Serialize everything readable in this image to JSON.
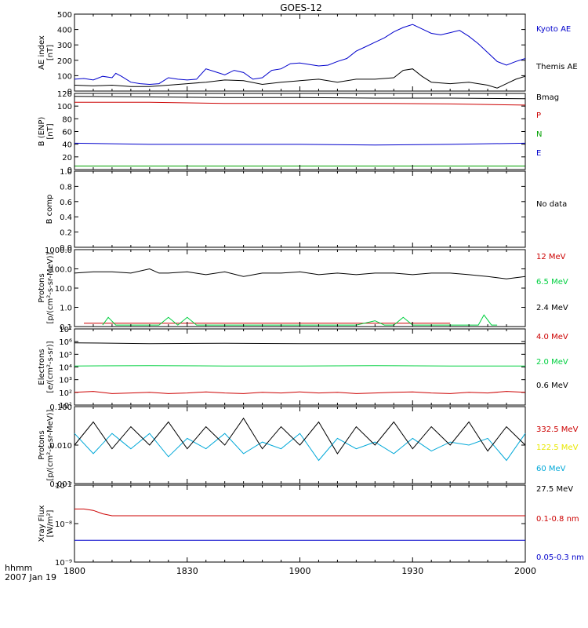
{
  "title": "GOES-12",
  "footer": {
    "time_label": "hhmm",
    "date_label": "2007 Jan 19"
  },
  "time_axis": {
    "ticks": [
      "1800",
      "1830",
      "1900",
      "1930",
      "2000"
    ]
  },
  "colors": {
    "black": "#000000",
    "red": "#cc0000",
    "blue": "#0000cc",
    "green": "#00a000",
    "brightgreen": "#00d040",
    "yellow": "#e8e800",
    "cyan": "#00a8d8"
  },
  "chart_data": [
    {
      "type": "line",
      "ylabel": [
        "AE index",
        "[nT]"
      ],
      "yscale": "linear",
      "ylim": [
        0,
        520
      ],
      "yticks": [
        "0",
        "100",
        "200",
        "300",
        "400",
        "500"
      ],
      "series": [
        {
          "name": "Kyoto AE",
          "color": "blue",
          "x": [
            0,
            5,
            10,
            15,
            20,
            22,
            25,
            30,
            35,
            40,
            45,
            50,
            55,
            60,
            65,
            70,
            75,
            80,
            85,
            90,
            95,
            100,
            105,
            110,
            115,
            120,
            125,
            130,
            135,
            140,
            145,
            150,
            155,
            160,
            165,
            170,
            175,
            180,
            185,
            190,
            195,
            200,
            205,
            210,
            215,
            220,
            225,
            230,
            235,
            240
          ],
          "y": [
            80,
            85,
            75,
            100,
            90,
            120,
            100,
            60,
            50,
            45,
            50,
            90,
            80,
            75,
            80,
            150,
            130,
            110,
            140,
            125,
            80,
            90,
            140,
            150,
            185,
            190,
            180,
            170,
            175,
            200,
            220,
            270,
            300,
            330,
            360,
            400,
            430,
            450,
            420,
            390,
            380,
            395,
            410,
            370,
            320,
            260,
            200,
            175,
            200,
            220
          ]
        },
        {
          "name": "Themis AE",
          "color": "black",
          "x": [
            0,
            10,
            20,
            30,
            40,
            50,
            60,
            70,
            80,
            90,
            100,
            110,
            120,
            130,
            140,
            150,
            160,
            170,
            175,
            180,
            185,
            190,
            200,
            210,
            220,
            225,
            230,
            235,
            240
          ],
          "y": [
            40,
            35,
            40,
            30,
            30,
            40,
            50,
            60,
            75,
            70,
            45,
            60,
            70,
            80,
            60,
            80,
            80,
            90,
            140,
            150,
            100,
            60,
            50,
            60,
            40,
            20,
            50,
            80,
            100
          ]
        }
      ]
    },
    {
      "type": "line",
      "ylabel": [
        "B (ENP)",
        "[nT]"
      ],
      "yscale": "linear",
      "ylim": [
        -5,
        125
      ],
      "yticks": [
        "0",
        "20",
        "40",
        "60",
        "80",
        "100",
        "120"
      ],
      "series": [
        {
          "name": "Bmag",
          "color": "black",
          "x": [
            0,
            40,
            80,
            120,
            160,
            200,
            240
          ],
          "y": [
            120,
            119,
            118,
            118,
            117,
            117,
            116
          ]
        },
        {
          "name": "P",
          "color": "red",
          "x": [
            0,
            40,
            80,
            120,
            160,
            200,
            240
          ],
          "y": [
            110,
            110,
            108,
            108,
            108,
            107,
            105
          ]
        },
        {
          "name": "N",
          "color": "green",
          "x": [
            0,
            40,
            80,
            120,
            160,
            200,
            240
          ],
          "y": [
            1,
            1,
            1,
            1,
            1,
            1,
            1
          ]
        },
        {
          "name": "E",
          "color": "blue",
          "x": [
            0,
            40,
            80,
            120,
            160,
            200,
            240
          ],
          "y": [
            40,
            38,
            38,
            38,
            37,
            38,
            40
          ]
        }
      ]
    },
    {
      "type": "line",
      "ylabel": [
        "B comp"
      ],
      "yscale": "linear",
      "ylim": [
        0,
        1
      ],
      "yticks": [
        "0.0",
        "0.2",
        "0.4",
        "0.6",
        "0.8",
        "1.0"
      ],
      "legend": [
        {
          "name": "No data",
          "color": "black"
        }
      ],
      "series": []
    },
    {
      "type": "line",
      "ylabel": [
        "Protons",
        "[p/(cm²-s-sr-MeV)]"
      ],
      "yscale": "log",
      "ylim": [
        0.1,
        1000
      ],
      "yticks": [
        "0.1",
        "1.0",
        "10.0",
        "100.0",
        "1000.0"
      ],
      "series": [
        {
          "name": "12 MeV",
          "color": "red",
          "x": [
            5,
            10,
            157,
            160,
            197,
            200
          ],
          "y": [
            0.15,
            0.15,
            0.15,
            0.15,
            0.15,
            0.15
          ]
        },
        {
          "name": "6.5 MeV",
          "color": "brightgreen",
          "x": [
            15,
            18,
            22,
            25,
            45,
            50,
            55,
            60,
            65,
            70,
            100,
            105,
            140,
            150,
            160,
            165,
            170,
            175,
            180,
            215,
            218,
            222,
            225
          ],
          "y": [
            0.12,
            0.3,
            0.12,
            0.12,
            0.12,
            0.3,
            0.12,
            0.3,
            0.12,
            0.12,
            0.12,
            0.12,
            0.12,
            0.12,
            0.2,
            0.12,
            0.12,
            0.3,
            0.12,
            0.12,
            0.4,
            0.12,
            0.12
          ]
        },
        {
          "name": "2.4 MeV",
          "color": "black",
          "x": [
            0,
            10,
            20,
            30,
            40,
            45,
            50,
            60,
            70,
            80,
            90,
            100,
            110,
            120,
            130,
            140,
            150,
            160,
            170,
            180,
            190,
            200,
            210,
            220,
            230,
            240
          ],
          "y": [
            60,
            70,
            70,
            60,
            100,
            60,
            60,
            70,
            50,
            70,
            40,
            60,
            60,
            70,
            50,
            60,
            50,
            60,
            60,
            50,
            60,
            60,
            50,
            40,
            30,
            40
          ]
        }
      ]
    },
    {
      "type": "line",
      "ylabel": [
        "Electrons",
        "[e/(cm²-s-sr)]"
      ],
      "yscale": "log",
      "ylim": [
        10,
        10000000
      ],
      "yticks": [
        "10¹",
        "10²",
        "10³",
        "10⁴",
        "10⁵",
        "10⁶",
        "10⁷"
      ],
      "series": [
        {
          "name": "4.0 MeV",
          "color": "red",
          "x": [
            0,
            10,
            20,
            30,
            40,
            50,
            60,
            70,
            80,
            90,
            100,
            110,
            120,
            130,
            140,
            150,
            160,
            170,
            180,
            190,
            200,
            210,
            220,
            230,
            240
          ],
          "y": [
            100,
            120,
            80,
            90,
            100,
            80,
            90,
            110,
            90,
            80,
            100,
            90,
            110,
            90,
            100,
            80,
            90,
            100,
            110,
            90,
            80,
            100,
            90,
            120,
            100
          ]
        },
        {
          "name": "2.0 MeV",
          "color": "brightgreen",
          "x": [
            0,
            40,
            80,
            120,
            160,
            200,
            240
          ],
          "y": [
            12000,
            13000,
            12000,
            12000,
            13000,
            12000,
            12000
          ]
        },
        {
          "name": "0.6 MeV",
          "color": "black",
          "x": [
            0,
            40,
            80,
            120,
            160,
            200,
            240
          ],
          "y": [
            800000,
            700000,
            750000,
            700000,
            700000,
            700000,
            700000
          ]
        }
      ]
    },
    {
      "type": "line",
      "ylabel": [
        "Protons",
        "[p/(cm²-s-sr-MeV)]"
      ],
      "yscale": "log",
      "ylim": [
        0.001,
        0.1
      ],
      "yticks": [
        "0.001",
        "0.010",
        "0.100"
      ],
      "series": [
        {
          "name": "332.5 MeV",
          "color": "red",
          "x": [],
          "y": []
        },
        {
          "name": "122.5 MeV",
          "color": "yellow",
          "x": [],
          "y": []
        },
        {
          "name": "60 MeV",
          "color": "cyan",
          "x": [
            0,
            10,
            20,
            30,
            40,
            50,
            60,
            70,
            80,
            90,
            100,
            110,
            120,
            130,
            140,
            150,
            160,
            170,
            180,
            190,
            200,
            210,
            220,
            230,
            240
          ],
          "y": [
            0.02,
            0.006,
            0.02,
            0.008,
            0.02,
            0.005,
            0.015,
            0.008,
            0.02,
            0.006,
            0.012,
            0.008,
            0.02,
            0.004,
            0.015,
            0.008,
            0.012,
            0.006,
            0.015,
            0.007,
            0.012,
            0.01,
            0.015,
            0.004,
            0.02
          ]
        },
        {
          "name": "27.5 MeV",
          "color": "black",
          "x": [
            0,
            10,
            20,
            30,
            40,
            50,
            60,
            70,
            80,
            90,
            100,
            110,
            120,
            130,
            140,
            150,
            160,
            170,
            180,
            190,
            200,
            210,
            220,
            230,
            240
          ],
          "y": [
            0.01,
            0.04,
            0.008,
            0.03,
            0.01,
            0.04,
            0.008,
            0.03,
            0.01,
            0.05,
            0.008,
            0.03,
            0.01,
            0.04,
            0.006,
            0.03,
            0.01,
            0.04,
            0.008,
            0.03,
            0.01,
            0.04,
            0.007,
            0.03,
            0.01
          ]
        }
      ]
    },
    {
      "type": "line",
      "ylabel": [
        "Xray Flux",
        "[W/m²]"
      ],
      "yscale": "log",
      "ylim": [
        1e-09,
        1e-07
      ],
      "yticks": [
        "10⁻⁹",
        "10⁻⁸",
        "10⁻⁷"
      ],
      "series": [
        {
          "name": "0.1-0.8 nm",
          "color": "red",
          "x": [
            0,
            5,
            10,
            15,
            20,
            240
          ],
          "y": [
            2.4e-08,
            2.4e-08,
            2.2e-08,
            1.8e-08,
            1.6e-08,
            1.6e-08
          ]
        },
        {
          "name": "0.05-0.3 nm",
          "color": "blue",
          "x": [
            0,
            240
          ],
          "y": [
            3.7e-09,
            3.7e-09
          ]
        }
      ]
    }
  ]
}
